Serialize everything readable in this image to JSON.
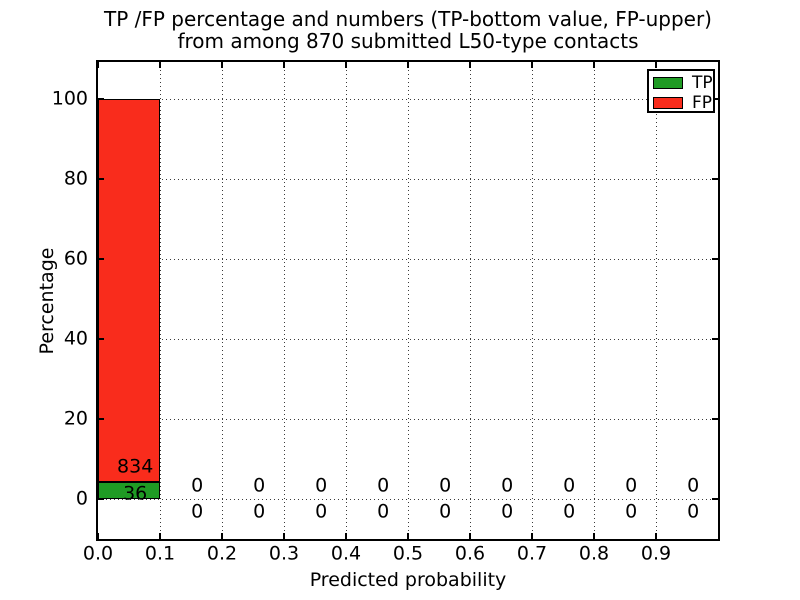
{
  "figure": {
    "title_line1": "TP /FP percentage and numbers (TP-bottom value, FP-upper)",
    "title_line2": "from among 870 submitted L50-type contacts"
  },
  "axes": {
    "xlabel": "Predicted probability",
    "ylabel": "Percentage",
    "x_tick_labels": [
      "0.0",
      "0.1",
      "0.2",
      "0.3",
      "0.4",
      "0.5",
      "0.6",
      "0.7",
      "0.8",
      "0.9"
    ],
    "x_tick_values": [
      0.0,
      0.1,
      0.2,
      0.3,
      0.4,
      0.5,
      0.6,
      0.7,
      0.8,
      0.9
    ],
    "y_tick_labels": [
      "0",
      "20",
      "40",
      "60",
      "80",
      "100"
    ],
    "y_tick_values": [
      0,
      20,
      40,
      60,
      80,
      100
    ]
  },
  "legend": {
    "items": [
      {
        "label": "TP",
        "color": "#1f9b24"
      },
      {
        "label": "FP",
        "color": "#f92c1c"
      }
    ]
  },
  "colors": {
    "tp": "#1f9b24",
    "fp": "#f92c1c",
    "grid": "#3a3a3a",
    "text": "#000000",
    "background": "#ffffff"
  },
  "chart_data": {
    "type": "bar",
    "stacked": true,
    "title": "TP /FP percentage and numbers (TP-bottom value, FP-upper) from among 870 submitted L50-type contacts",
    "xlabel": "Predicted probability",
    "ylabel": "Percentage",
    "total_contacts": 870,
    "bin_width": 0.1,
    "bin_starts": [
      0.0,
      0.1,
      0.2,
      0.3,
      0.4,
      0.5,
      0.6,
      0.7,
      0.8,
      0.9
    ],
    "series": [
      {
        "name": "TP",
        "color": "#1f9b24",
        "counts": [
          36,
          0,
          0,
          0,
          0,
          0,
          0,
          0,
          0,
          0
        ],
        "percentages": [
          4.14,
          0,
          0,
          0,
          0,
          0,
          0,
          0,
          0,
          0
        ]
      },
      {
        "name": "FP",
        "color": "#f92c1c",
        "counts": [
          834,
          0,
          0,
          0,
          0,
          0,
          0,
          0,
          0,
          0
        ],
        "percentages": [
          95.86,
          0,
          0,
          0,
          0,
          0,
          0,
          0,
          0,
          0
        ]
      }
    ],
    "xlim": [
      0.0,
      1.0
    ],
    "ylim": [
      -10.5,
      109.3
    ],
    "grid": true,
    "grid_style": "dotted",
    "legend_position": "upper right",
    "annotation_note": "FP count printed above TP bar top, TP count printed below"
  }
}
